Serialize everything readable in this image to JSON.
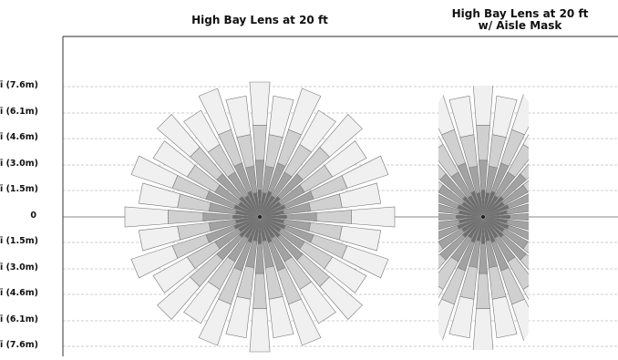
{
  "titles": {
    "left": "High Bay Lens at 20 ft",
    "right_line1": "High Bay Lens at 20 ft",
    "right_line2": "w/ Aisle Mask"
  },
  "y_axis": {
    "labels": [
      "ī (7.6m)",
      "ī (6.1m)",
      "ī (4.6m)",
      "ī (3.0m)",
      "ī (1.5m)",
      "0",
      "ī (1.5m)",
      "ī (3.0m)",
      "ī (4.6m)",
      "ī (6.1m)",
      "ī (7.6m)"
    ]
  },
  "colors": {
    "zone_outer": "#f0f0f0",
    "zone_middle": "#d0d0d0",
    "zone_inner": "#a2a2a2",
    "zone_core": "#6e6e6e",
    "gridline": "#bdbdbd",
    "axis": "#555555"
  },
  "patterns": [
    {
      "name": "full-coverage",
      "spokes": 32,
      "masked": false
    },
    {
      "name": "aisle-mask",
      "spokes": 32,
      "masked": true
    }
  ]
}
